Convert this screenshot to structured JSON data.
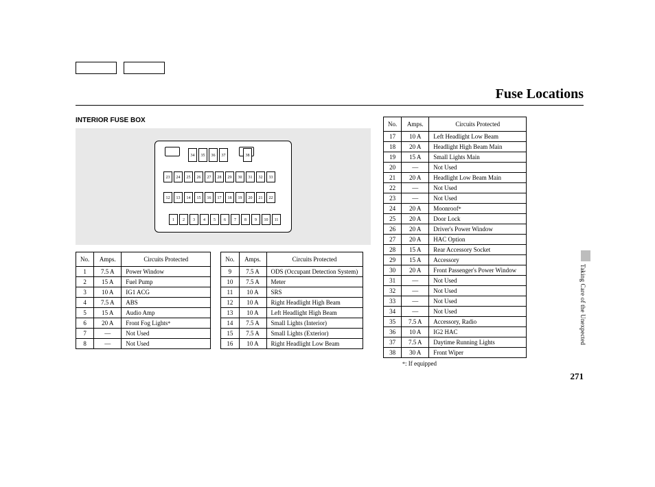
{
  "page": {
    "title": "Fuse Locations",
    "subtitle": "INTERIOR FUSE BOX",
    "side_label": "Taking Care of the Unexpected",
    "page_number": "271",
    "footnote_marker": "*",
    "footnote_text": ": If equipped"
  },
  "diagram": {
    "background_color": "#e8e8e8",
    "rows": {
      "top": [
        "34",
        "35",
        "36",
        "37",
        "",
        "38"
      ],
      "r1": [
        "23",
        "24",
        "25",
        "26",
        "27",
        "28",
        "29",
        "30",
        "31",
        "32",
        "33"
      ],
      "r2": [
        "12",
        "13",
        "14",
        "15",
        "16",
        "17",
        "18",
        "19",
        "20",
        "21",
        "22"
      ],
      "r3": [
        "1",
        "2",
        "3",
        "4",
        "5",
        "6",
        "7",
        "8",
        "9",
        "10",
        "11"
      ]
    }
  },
  "headers": {
    "no": "No.",
    "amps": "Amps.",
    "circuits": "Circuits Protected"
  },
  "table1": [
    {
      "no": "1",
      "amps": "7.5 A",
      "circ": "Power Window"
    },
    {
      "no": "2",
      "amps": "15 A",
      "circ": "Fuel Pump"
    },
    {
      "no": "3",
      "amps": "10 A",
      "circ": "IG1 ACG"
    },
    {
      "no": "4",
      "amps": "7.5 A",
      "circ": "ABS"
    },
    {
      "no": "5",
      "amps": "15 A",
      "circ": "Audio Amp"
    },
    {
      "no": "6",
      "amps": "20 A",
      "circ": "Front Fog Lights",
      "ast": true
    },
    {
      "no": "7",
      "amps": "—",
      "circ": "Not Used"
    },
    {
      "no": "8",
      "amps": "—",
      "circ": "Not Used"
    }
  ],
  "table2": [
    {
      "no": "9",
      "amps": "7.5 A",
      "circ": "ODS (Occupant Detection System)"
    },
    {
      "no": "10",
      "amps": "7.5 A",
      "circ": "Meter"
    },
    {
      "no": "11",
      "amps": "10 A",
      "circ": "SRS"
    },
    {
      "no": "12",
      "amps": "10 A",
      "circ": "Right Headlight High Beam"
    },
    {
      "no": "13",
      "amps": "10 A",
      "circ": "Left Headlight High Beam"
    },
    {
      "no": "14",
      "amps": "7.5 A",
      "circ": "Small Lights (Interior)"
    },
    {
      "no": "15",
      "amps": "7.5 A",
      "circ": "Small Lights (Exterior)"
    },
    {
      "no": "16",
      "amps": "10 A",
      "circ": "Right Headlight Low Beam"
    }
  ],
  "table3": [
    {
      "no": "17",
      "amps": "10 A",
      "circ": "Left Headlight Low Beam"
    },
    {
      "no": "18",
      "amps": "20 A",
      "circ": "Headlight High Beam Main"
    },
    {
      "no": "19",
      "amps": "15 A",
      "circ": "Small Lights Main"
    },
    {
      "no": "20",
      "amps": "—",
      "circ": "Not Used"
    },
    {
      "no": "21",
      "amps": "20 A",
      "circ": "Headlight Low Beam Main"
    },
    {
      "no": "22",
      "amps": "—",
      "circ": "Not Used"
    },
    {
      "no": "23",
      "amps": "—",
      "circ": "Not Used"
    },
    {
      "no": "24",
      "amps": "20 A",
      "circ": "Moonroof",
      "ast": true
    },
    {
      "no": "25",
      "amps": "20 A",
      "circ": "Door Lock"
    },
    {
      "no": "26",
      "amps": "20 A",
      "circ": "Driver's Power Window"
    },
    {
      "no": "27",
      "amps": "20 A",
      "circ": "HAC Option"
    },
    {
      "no": "28",
      "amps": "15 A",
      "circ": "Rear Accessory Socket"
    },
    {
      "no": "29",
      "amps": "15 A",
      "circ": "Accessory"
    },
    {
      "no": "30",
      "amps": "20 A",
      "circ": "Front Passenger's Power Window"
    },
    {
      "no": "31",
      "amps": "—",
      "circ": "Not Used"
    },
    {
      "no": "32",
      "amps": "—",
      "circ": "Not Used"
    },
    {
      "no": "33",
      "amps": "—",
      "circ": "Not Used"
    },
    {
      "no": "34",
      "amps": "—",
      "circ": "Not Used"
    },
    {
      "no": "35",
      "amps": "7.5 A",
      "circ": "Accessory, Radio"
    },
    {
      "no": "36",
      "amps": "10 A",
      "circ": "IG2 HAC"
    },
    {
      "no": "37",
      "amps": "7.5 A",
      "circ": "Daytime Running Lights"
    },
    {
      "no": "38",
      "amps": "30 A",
      "circ": "Front Wiper"
    }
  ]
}
